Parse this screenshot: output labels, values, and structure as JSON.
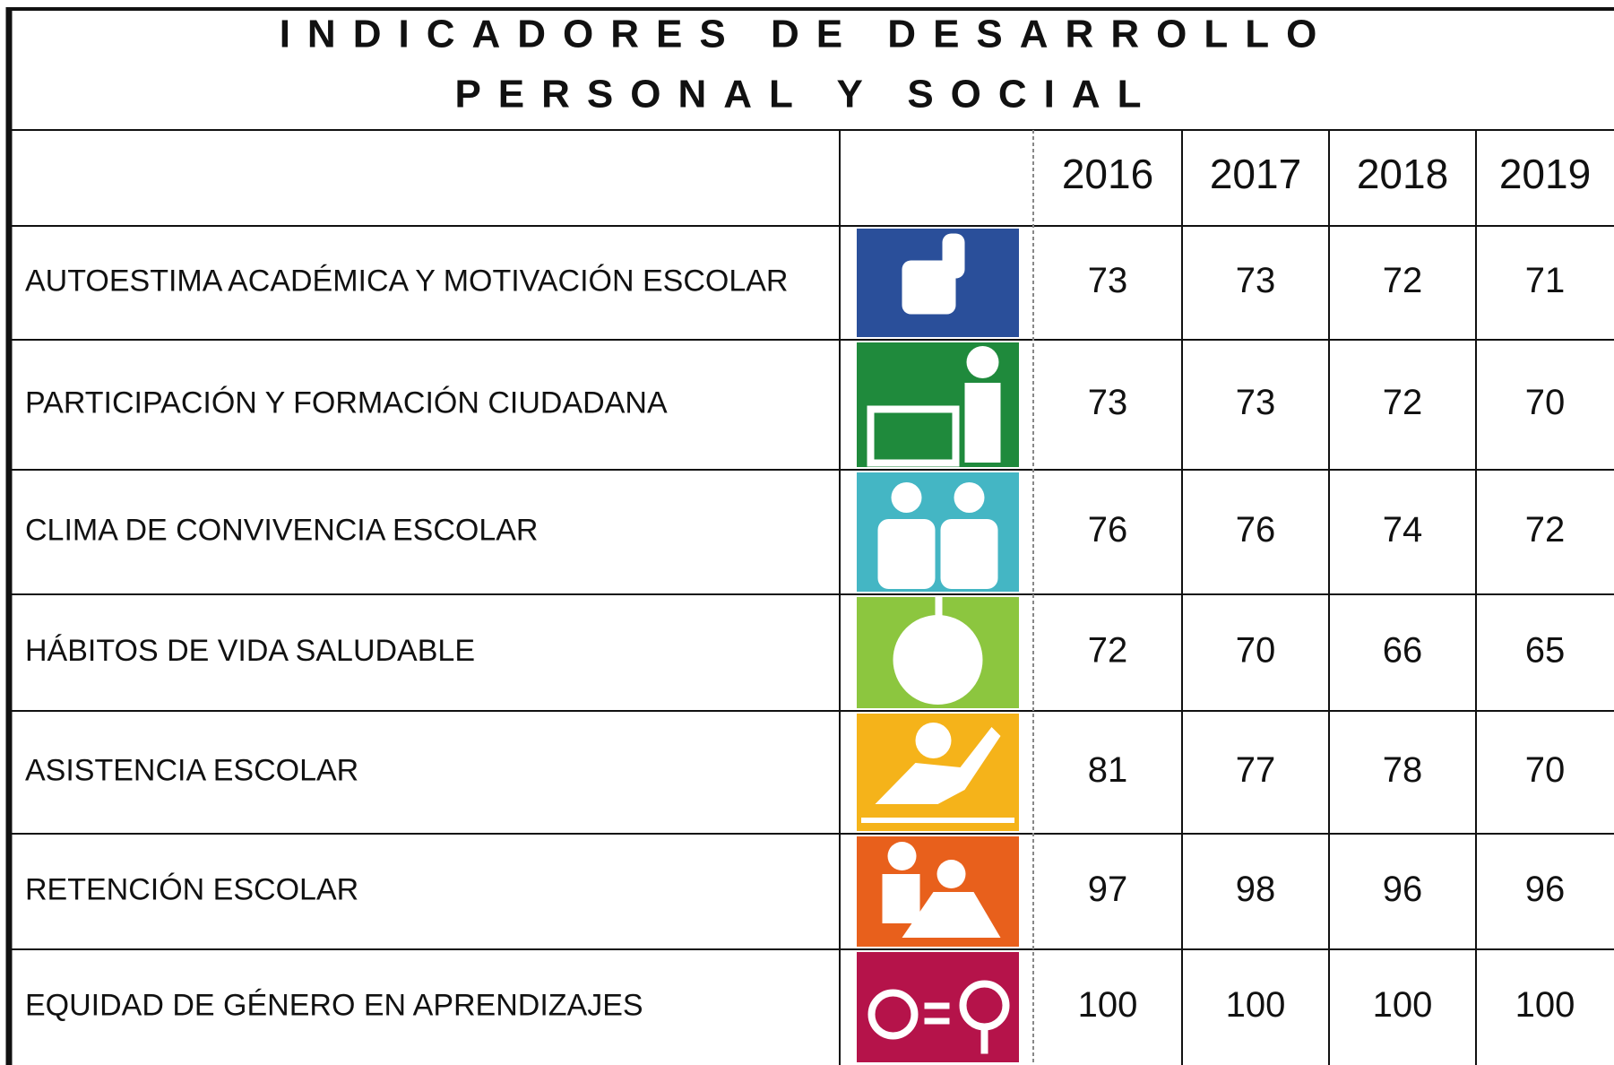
{
  "header": {
    "title_lines": [
      "INDICADORES DE DESARROLLO",
      "PERSONAL Y SOCIAL"
    ]
  },
  "table": {
    "columns": [
      "2016",
      "2017",
      "2018",
      "2019"
    ],
    "rows": [
      {
        "label": "AUTOESTIMA ACADÉMICA Y MOTIVACIÓN ESCOLAR",
        "values": [
          73,
          73,
          72,
          71
        ]
      },
      {
        "label": "PARTICIPACIÓN Y FORMACIÓN CIUDADANA",
        "values": [
          73,
          73,
          72,
          70
        ]
      },
      {
        "label": "CLIMA DE CONVIVENCIA ESCOLAR",
        "values": [
          76,
          76,
          74,
          72
        ]
      },
      {
        "label": "HÁBITOS DE VIDA SALUDABLE",
        "values": [
          72,
          70,
          66,
          65
        ]
      },
      {
        "label": "ASISTENCIA ESCOLAR",
        "values": [
          81,
          77,
          78,
          70
        ]
      },
      {
        "label": "RETENCIÓN ESCOLAR",
        "values": [
          97,
          98,
          96,
          96
        ]
      },
      {
        "label": "EQUIDAD DE GÉNERO EN APRENDIZAJES",
        "values": [
          100,
          100,
          100,
          100
        ]
      }
    ]
  }
}
